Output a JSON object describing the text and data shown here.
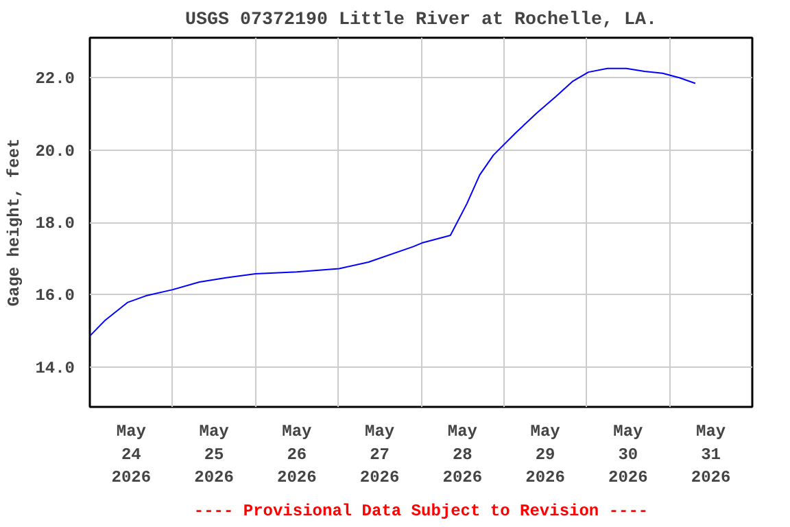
{
  "chart_data": {
    "type": "line",
    "title": "USGS 07372190 Little River at Rochelle, LA.",
    "ylabel": "Gage height, feet",
    "annotations": [
      "---- Provisional Data Subject to Revision ----"
    ],
    "x": [
      "2026-05-24T00:00",
      "2026-05-24T04:30",
      "2026-05-24T11:00",
      "2026-05-24T16:15",
      "2026-05-25T00:00",
      "2026-05-25T07:45",
      "2026-05-25T15:30",
      "2026-05-26T00:00",
      "2026-05-26T12:00",
      "2026-05-27T00:15",
      "2026-05-27T08:45",
      "2026-05-27T21:45",
      "2026-05-28T00:15",
      "2026-05-28T08:30",
      "2026-05-28T13:15",
      "2026-05-28T17:00",
      "2026-05-28T21:00",
      "2026-05-29T03:30",
      "2026-05-29T09:45",
      "2026-05-29T15:00",
      "2026-05-29T20:00",
      "2026-05-30T00:30",
      "2026-05-30T06:00",
      "2026-05-30T11:30",
      "2026-05-30T16:45",
      "2026-05-30T22:00",
      "2026-05-31T03:00",
      "2026-05-31T07:30"
    ],
    "series": [
      {
        "color": "#0000ff",
        "values": [
          14.86,
          15.3,
          15.79,
          15.97,
          16.14,
          16.35,
          16.47,
          16.58,
          16.63,
          16.72,
          16.9,
          17.33,
          17.43,
          17.64,
          18.51,
          19.31,
          19.86,
          20.48,
          21.04,
          21.47,
          21.9,
          22.15,
          22.25,
          22.25,
          22.17,
          22.12,
          21.99,
          21.84
        ]
      }
    ],
    "xlim": [
      "2026-05-24T00:00",
      "2026-06-01T00:00"
    ],
    "xticks": [
      {
        "value": "2026-05-24T12:00",
        "label": "May\n24\n2026"
      },
      {
        "value": "2026-05-25T00:00",
        "label": null
      },
      {
        "value": "2026-05-25T12:00",
        "label": "May\n25\n2026"
      },
      {
        "value": "2026-05-26T00:00",
        "label": null
      },
      {
        "value": "2026-05-26T12:00",
        "label": "May\n26\n2026"
      },
      {
        "value": "2026-05-27T00:00",
        "label": null
      },
      {
        "value": "2026-05-27T12:00",
        "label": "May\n27\n2026"
      },
      {
        "value": "2026-05-28T00:00",
        "label": null
      },
      {
        "value": "2026-05-28T12:00",
        "label": "May\n28\n2026"
      },
      {
        "value": "2026-05-29T00:00",
        "label": null
      },
      {
        "value": "2026-05-29T12:00",
        "label": "May\n29\n2026"
      },
      {
        "value": "2026-05-30T00:00",
        "label": null
      },
      {
        "value": "2026-05-30T12:00",
        "label": "May\n30\n2026"
      },
      {
        "value": "2026-05-31T00:00",
        "label": null
      },
      {
        "value": "2026-05-31T12:00",
        "label": "May\n31\n2026"
      }
    ],
    "ylim": [
      12.9,
      23.1
    ],
    "yticks": [
      {
        "value": 14,
        "label": "14.0"
      },
      {
        "value": 16,
        "label": "16.0"
      },
      {
        "value": 18,
        "label": "18.0"
      },
      {
        "value": 20,
        "label": "20.0"
      },
      {
        "value": 22,
        "label": "22.0"
      }
    ],
    "grid": true,
    "marker": "none",
    "line_style": "solid"
  }
}
